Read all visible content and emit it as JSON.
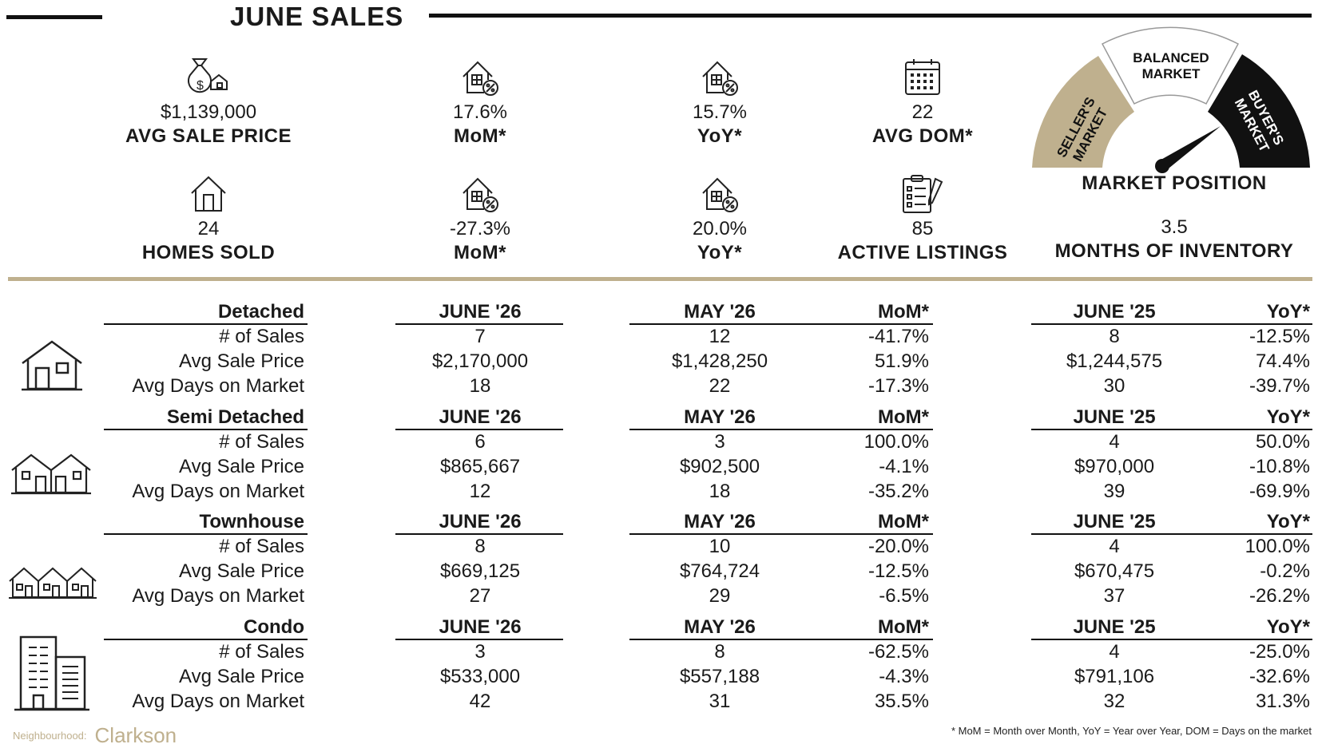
{
  "header": {
    "title": "JUNE SALES"
  },
  "stats_top": [
    {
      "icon": "money-bag-house-icon",
      "value": "$1,139,000",
      "label": "AVG SALE PRICE"
    },
    {
      "icon": "house-percent-icon",
      "value": "17.6%",
      "label": "MoM*"
    },
    {
      "icon": "house-percent-icon",
      "value": "15.7%",
      "label": "YoY*"
    },
    {
      "icon": "calendar-icon",
      "value": "22",
      "label": "AVG DOM*"
    }
  ],
  "stats_bottom": [
    {
      "icon": "house-icon",
      "value": "24",
      "label": "HOMES SOLD"
    },
    {
      "icon": "house-percent-icon",
      "value": "-27.3%",
      "label": "MoM*"
    },
    {
      "icon": "house-percent-icon",
      "value": "20.0%",
      "label": "YoY*"
    },
    {
      "icon": "clipboard-icon",
      "value": "85",
      "label": "ACTIVE LISTINGS"
    }
  ],
  "gauge": {
    "sellers": "SELLER'S MARKET",
    "balanced_line1": "BALANCED",
    "balanced_line2": "MARKET",
    "buyers": "BUYER'S MARKET",
    "label": "MARKET POSITION",
    "months_value": "3.5",
    "months_label": "MONTHS OF INVENTORY",
    "colors": {
      "sellers": "#bfb08e",
      "balanced": "#ffffff",
      "buyers": "#111111"
    }
  },
  "metric_labels": [
    "# of Sales",
    "Avg Sale Price",
    "Avg Days on Market"
  ],
  "column_heads": {
    "current": "JUNE '26",
    "previous": "MAY '26",
    "mom": "MoM*",
    "last_year": "JUNE '25",
    "yoy": "YoY*"
  },
  "sections": [
    {
      "name": "Detached",
      "icon": "detached-house-icon",
      "rows": [
        [
          "7",
          "12",
          "-41.7%",
          "8",
          "-12.5%"
        ],
        [
          "$2,170,000",
          "$1,428,250",
          "51.9%",
          "$1,244,575",
          "74.4%"
        ],
        [
          "18",
          "22",
          "-17.3%",
          "30",
          "-39.7%"
        ]
      ]
    },
    {
      "name": "Semi Detached",
      "icon": "semi-detached-icon",
      "rows": [
        [
          "6",
          "3",
          "100.0%",
          "4",
          "50.0%"
        ],
        [
          "$865,667",
          "$902,500",
          "-4.1%",
          "$970,000",
          "-10.8%"
        ],
        [
          "12",
          "18",
          "-35.2%",
          "39",
          "-69.9%"
        ]
      ]
    },
    {
      "name": "Townhouse",
      "icon": "townhouse-icon",
      "rows": [
        [
          "8",
          "10",
          "-20.0%",
          "4",
          "100.0%"
        ],
        [
          "$669,125",
          "$764,724",
          "-12.5%",
          "$670,475",
          "-0.2%"
        ],
        [
          "27",
          "29",
          "-6.5%",
          "37",
          "-26.2%"
        ]
      ]
    },
    {
      "name": "Condo",
      "icon": "condo-icon",
      "rows": [
        [
          "3",
          "8",
          "-62.5%",
          "4",
          "-25.0%"
        ],
        [
          "$533,000",
          "$557,188",
          "-4.3%",
          "$791,106",
          "-32.6%"
        ],
        [
          "42",
          "31",
          "35.5%",
          "32",
          "31.3%"
        ]
      ]
    }
  ],
  "footer": {
    "neighbourhood_label": "Neighbourhood:",
    "neighbourhood": "Clarkson",
    "footnote": "* MoM = Month over Month, YoY = Year over Year, DOM = Days on the market"
  }
}
